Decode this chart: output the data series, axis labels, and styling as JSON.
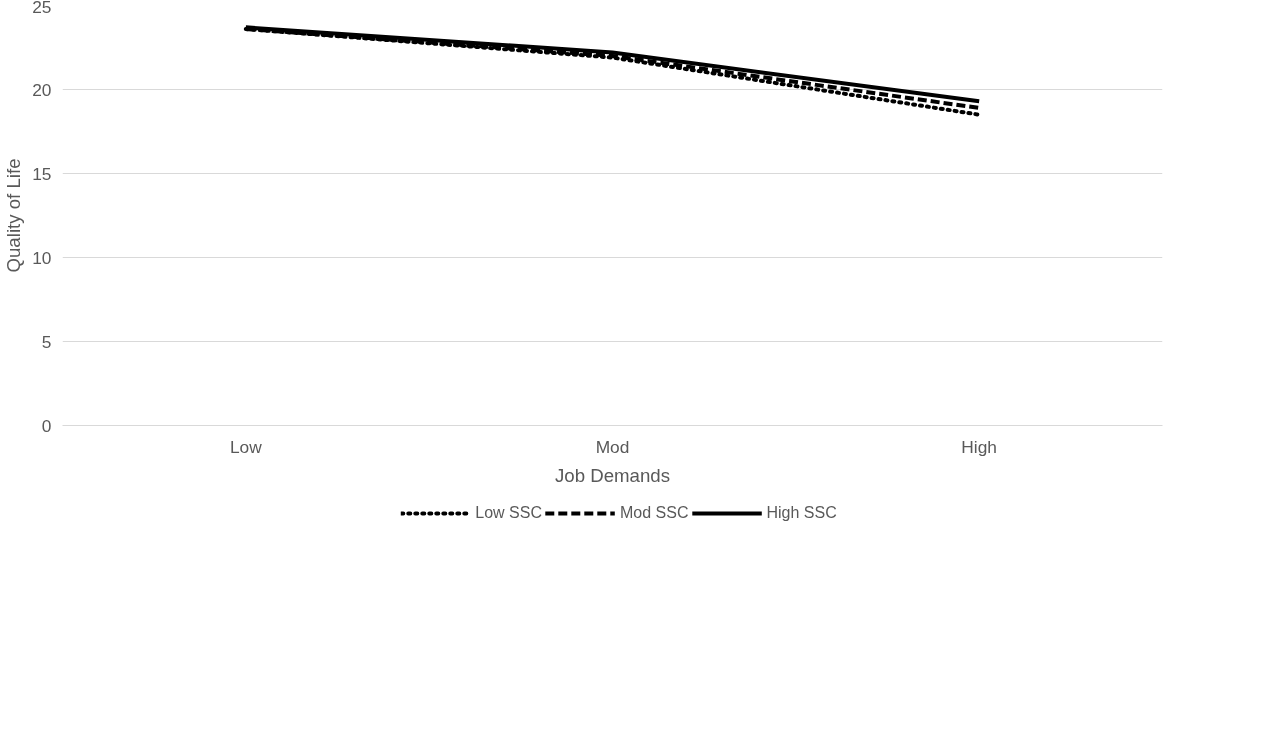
{
  "chart_data": {
    "type": "line",
    "xlabel": "Job Demands",
    "ylabel": "Quality of Life",
    "categories": [
      "Low",
      "Mod",
      "High"
    ],
    "series": [
      {
        "name": "Low SSC",
        "color": "#000000",
        "line_style": "dotted",
        "values": [
          23.6,
          21.9,
          18.5
        ]
      },
      {
        "name": "Mod SSC",
        "color": "#000000",
        "line_style": "dashed",
        "values": [
          23.6,
          22.0,
          18.9
        ]
      },
      {
        "name": "High SSC",
        "color": "#000000",
        "line_style": "solid",
        "values": [
          23.7,
          22.2,
          19.3
        ]
      }
    ],
    "ylim": [
      0,
      25
    ],
    "yticks": [
      0,
      5,
      10,
      15,
      20,
      25
    ],
    "grid": "y",
    "legend": "bottom",
    "marker": "none"
  }
}
